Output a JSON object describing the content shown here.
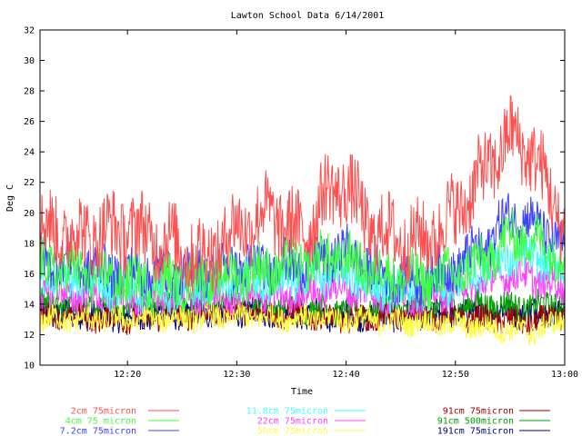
{
  "chart_data": {
    "type": "line",
    "title": "Lawton School Data 6/14/2001",
    "xlabel": "Time",
    "ylabel": "Deg C",
    "x_range": [
      "12:12",
      "13:00"
    ],
    "ylim": [
      10,
      32
    ],
    "yticks": [
      "10",
      "12",
      "14",
      "16",
      "18",
      "20",
      "22",
      "24",
      "26",
      "28",
      "30",
      "32"
    ],
    "xticks": [
      "12:20",
      "12:30",
      "12:40",
      "12:50",
      "13:00"
    ],
    "grid": false,
    "legend_position": "bottom",
    "series": [
      {
        "name": "2cm 75micron",
        "color": "#ff5050",
        "anchors": [
          [
            "12:12",
            19
          ],
          [
            "12:16",
            18.5
          ],
          [
            "12:20",
            19
          ],
          [
            "12:24",
            18
          ],
          [
            "12:27",
            17
          ],
          [
            "12:30",
            19
          ],
          [
            "12:33",
            20
          ],
          [
            "12:36",
            18.5
          ],
          [
            "12:38",
            21
          ],
          [
            "12:40",
            22
          ],
          [
            "12:42",
            19
          ],
          [
            "12:44",
            18.5
          ],
          [
            "12:47",
            18
          ],
          [
            "12:50",
            20
          ],
          [
            "12:52",
            22
          ],
          [
            "12:55",
            25
          ],
          [
            "12:57",
            24
          ],
          [
            "13:00",
            19
          ]
        ],
        "noise": 2.4
      },
      {
        "name": "4cm 75 micron",
        "color": "#40ff40",
        "anchors": [
          [
            "12:12",
            16.5
          ],
          [
            "12:16",
            16
          ],
          [
            "12:20",
            15.5
          ],
          [
            "12:25",
            15.5
          ],
          [
            "12:30",
            16
          ],
          [
            "12:35",
            16.5
          ],
          [
            "12:38",
            17
          ],
          [
            "12:40",
            17
          ],
          [
            "12:43",
            16
          ],
          [
            "12:47",
            15.5
          ],
          [
            "12:50",
            16
          ],
          [
            "12:53",
            17
          ],
          [
            "12:55",
            18.5
          ],
          [
            "12:58",
            18
          ],
          [
            "13:00",
            17
          ]
        ],
        "noise": 1.6
      },
      {
        "name": "7.2cm 75micron",
        "color": "#4040ff",
        "anchors": [
          [
            "12:12",
            17
          ],
          [
            "12:16",
            16.5
          ],
          [
            "12:20",
            16
          ],
          [
            "12:25",
            16
          ],
          [
            "12:30",
            16.5
          ],
          [
            "12:35",
            16.5
          ],
          [
            "12:38",
            17
          ],
          [
            "12:40",
            17.5
          ],
          [
            "12:43",
            16
          ],
          [
            "12:47",
            15.5
          ],
          [
            "12:50",
            16.5
          ],
          [
            "12:53",
            18
          ],
          [
            "12:55",
            20
          ],
          [
            "12:58",
            19
          ],
          [
            "13:00",
            17.5
          ]
        ],
        "noise": 1.5
      },
      {
        "name": "11.8cm 75micron",
        "color": "#40ffff",
        "anchors": [
          [
            "12:12",
            16
          ],
          [
            "12:16",
            15.5
          ],
          [
            "12:20",
            15
          ],
          [
            "12:25",
            15
          ],
          [
            "12:30",
            15.5
          ],
          [
            "12:35",
            15.5
          ],
          [
            "12:38",
            16
          ],
          [
            "12:40",
            16
          ],
          [
            "12:43",
            15
          ],
          [
            "12:47",
            15
          ],
          [
            "12:50",
            15.5
          ],
          [
            "12:53",
            16.5
          ],
          [
            "12:55",
            17
          ],
          [
            "12:58",
            17
          ],
          [
            "13:00",
            16
          ]
        ],
        "noise": 1.3
      },
      {
        "name": "22cm 75micron",
        "color": "#ff40ff",
        "anchors": [
          [
            "12:12",
            15
          ],
          [
            "12:16",
            14.5
          ],
          [
            "12:20",
            14.5
          ],
          [
            "12:25",
            14.5
          ],
          [
            "12:30",
            14.5
          ],
          [
            "12:35",
            14.5
          ],
          [
            "12:38",
            15
          ],
          [
            "12:40",
            15
          ],
          [
            "12:43",
            14.5
          ],
          [
            "12:47",
            14.5
          ],
          [
            "12:50",
            15
          ],
          [
            "12:53",
            15.5
          ],
          [
            "12:55",
            16
          ],
          [
            "12:58",
            15.5
          ],
          [
            "13:00",
            15
          ]
        ],
        "noise": 1.1
      },
      {
        "name": "56cm 75micron",
        "color": "#ffff40",
        "anchors": [
          [
            "12:12",
            13
          ],
          [
            "12:20",
            13
          ],
          [
            "12:30",
            13.2
          ],
          [
            "12:40",
            13
          ],
          [
            "12:47",
            12.8
          ],
          [
            "12:53",
            12.5
          ],
          [
            "12:57",
            12.2
          ],
          [
            "13:00",
            13
          ]
        ],
        "noise": 0.8
      },
      {
        "name": "91cm 75micron",
        "color": "#a00000",
        "anchors": [
          [
            "12:12",
            13.2
          ],
          [
            "12:20",
            13
          ],
          [
            "12:30",
            13.5
          ],
          [
            "12:40",
            13
          ],
          [
            "12:47",
            13.2
          ],
          [
            "12:53",
            13
          ],
          [
            "12:57",
            12.8
          ],
          [
            "13:00",
            13.3
          ]
        ],
        "noise": 0.8
      },
      {
        "name": "91cm 500micron",
        "color": "#00a000",
        "anchors": [
          [
            "12:12",
            14
          ],
          [
            "12:20",
            13.8
          ],
          [
            "12:30",
            14
          ],
          [
            "12:40",
            13.6
          ],
          [
            "12:47",
            13.8
          ],
          [
            "12:53",
            14
          ],
          [
            "12:57",
            13.8
          ],
          [
            "13:00",
            14.2
          ]
        ],
        "noise": 0.9
      },
      {
        "name": "191cm 75micron",
        "color": "#000080",
        "anchors": [
          [
            "12:12",
            13.5
          ],
          [
            "12:20",
            13.2
          ],
          [
            "12:30",
            13.6
          ],
          [
            "12:40",
            13.2
          ],
          [
            "12:47",
            13.3
          ],
          [
            "12:53",
            13.5
          ],
          [
            "12:57",
            13.4
          ],
          [
            "13:00",
            13.6
          ]
        ],
        "noise": 0.9
      }
    ]
  }
}
